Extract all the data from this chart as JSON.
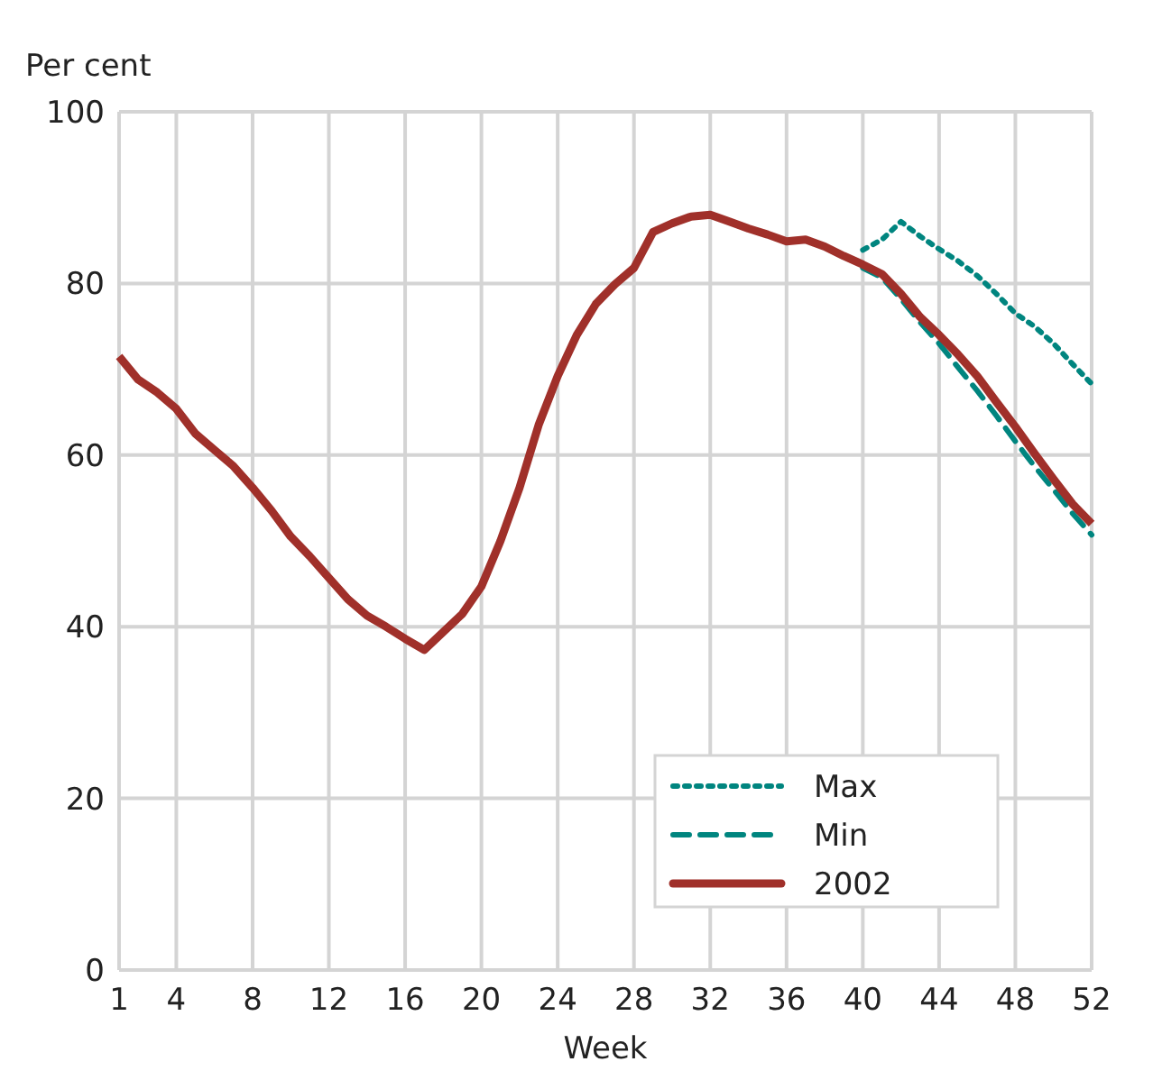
{
  "chart_data": {
    "type": "line",
    "ylabel": "Per cent",
    "xlabel": "Week",
    "xlim": [
      1,
      52
    ],
    "xticks": [
      1,
      4,
      8,
      12,
      16,
      20,
      24,
      28,
      32,
      36,
      40,
      44,
      48,
      52
    ],
    "ylim": [
      0,
      100
    ],
    "yticks": [
      0,
      20,
      40,
      60,
      80,
      100
    ],
    "grid": true,
    "legend": "bottom right",
    "x": [
      1,
      2,
      3,
      4,
      5,
      6,
      7,
      8,
      9,
      10,
      11,
      12,
      13,
      14,
      15,
      16,
      17,
      18,
      19,
      20,
      21,
      22,
      23,
      24,
      25,
      26,
      27,
      28,
      29,
      30,
      31,
      32,
      33,
      34,
      35,
      36,
      37,
      38,
      39,
      40,
      41,
      42,
      43,
      44,
      45,
      46,
      47,
      48,
      49,
      50,
      51,
      52
    ],
    "series": [
      {
        "name": "Max",
        "color": "#00857f",
        "line_style": "dotted",
        "x": [
          40,
          41,
          42,
          43,
          44,
          45,
          46,
          47,
          48,
          49,
          50,
          51,
          52
        ],
        "values": [
          83.9,
          85.1,
          87.2,
          85.5,
          84,
          82.6,
          80.9,
          78.8,
          76.5,
          75,
          73,
          70.6,
          68.3
        ]
      },
      {
        "name": "Min",
        "color": "#00857f",
        "line_style": "dashed",
        "x": [
          40,
          41,
          42,
          43,
          44,
          45,
          46,
          47,
          48,
          49,
          50,
          51,
          52
        ],
        "values": [
          81.8,
          80.7,
          78.2,
          75.5,
          73,
          70.2,
          67.5,
          64.6,
          61.6,
          58.7,
          56,
          53.2,
          50.7
        ]
      },
      {
        "name": "2002",
        "color": "#a0302a",
        "line_style": "solid",
        "values": [
          71.5,
          68.8,
          67.3,
          65.4,
          62.5,
          60.6,
          58.7,
          56.2,
          53.5,
          50.5,
          48.2,
          45.7,
          43.2,
          41.3,
          40,
          38.6,
          37.3,
          39.4,
          41.5,
          44.7,
          50,
          56.2,
          63.5,
          69.2,
          74,
          77.6,
          79.9,
          81.8,
          86,
          87,
          87.8,
          88,
          87.2,
          86.4,
          85.7,
          84.9,
          85.1,
          84.3,
          83.2,
          82.2,
          81.1,
          78.8,
          76.1,
          74,
          71.7,
          69.2,
          66.2,
          63.3,
          60.2,
          57.2,
          54.3,
          52
        ]
      }
    ]
  }
}
